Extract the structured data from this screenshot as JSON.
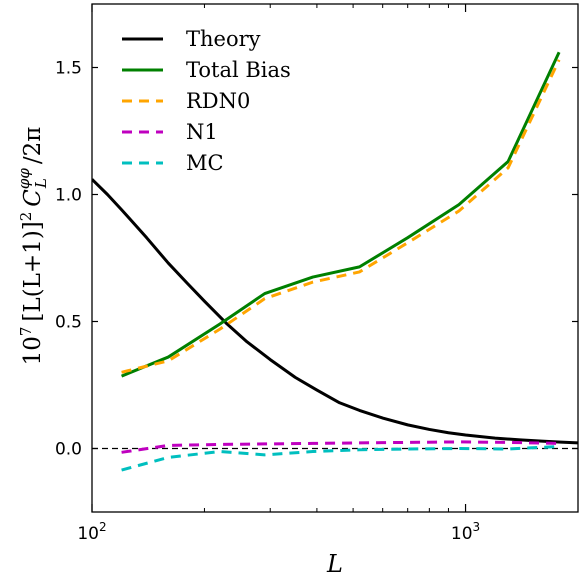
{
  "chart_data": {
    "type": "line",
    "xlabel": "L",
    "ylabel_parts": [
      "10",
      "7",
      "[L(L+1)]",
      "2",
      "C",
      "φφ",
      "L",
      "/2π"
    ],
    "xscale": "log",
    "xlim": [
      100,
      2000
    ],
    "ylim": [
      -0.25,
      1.75
    ],
    "x_ticks": [
      100,
      1000
    ],
    "x_tick_labels": [
      {
        "base": "10",
        "exp": "2"
      },
      {
        "base": "10",
        "exp": "3"
      }
    ],
    "y_ticks": [
      0.0,
      0.5,
      1.0,
      1.5
    ],
    "y_tick_labels": [
      "0.0",
      "0.5",
      "1.0",
      "1.5"
    ],
    "legend_position": "upper-left",
    "reference_line": {
      "y": 0.0,
      "style": "dashed",
      "color": "#000000"
    },
    "series": [
      {
        "name": "Theory",
        "color": "#000000",
        "dash": false,
        "x": [
          100,
          110,
          120,
          140,
          160,
          180,
          200,
          230,
          260,
          300,
          350,
          400,
          460,
          520,
          600,
          700,
          800,
          900,
          1000,
          1200,
          1400,
          1600,
          1800,
          2000
        ],
        "y": [
          1.06,
          1.0,
          0.94,
          0.83,
          0.73,
          0.65,
          0.58,
          0.49,
          0.42,
          0.35,
          0.28,
          0.23,
          0.18,
          0.15,
          0.12,
          0.093,
          0.075,
          0.062,
          0.053,
          0.041,
          0.034,
          0.029,
          0.025,
          0.022
        ]
      },
      {
        "name": "Total Bias",
        "color": "#008000",
        "dash": false,
        "x": [
          120,
          160,
          220,
          290,
          390,
          520,
          700,
          960,
          1300,
          1780
        ],
        "y": [
          0.285,
          0.36,
          0.49,
          0.61,
          0.675,
          0.715,
          0.83,
          0.96,
          1.13,
          1.56
        ]
      },
      {
        "name": "RDN0",
        "color": "#FFA500",
        "dash": true,
        "x": [
          120,
          160,
          220,
          290,
          390,
          520,
          700,
          960,
          1300,
          1780
        ],
        "y": [
          0.3,
          0.345,
          0.47,
          0.59,
          0.655,
          0.695,
          0.81,
          0.935,
          1.105,
          1.53
        ]
      },
      {
        "name": "N1",
        "color": "#BF00BF",
        "dash": true,
        "x": [
          120,
          160,
          220,
          290,
          390,
          520,
          700,
          960,
          1300,
          1780
        ],
        "y": [
          -0.015,
          0.012,
          0.016,
          0.018,
          0.02,
          0.022,
          0.024,
          0.026,
          0.024,
          0.02
        ]
      },
      {
        "name": "MC",
        "color": "#00BFBF",
        "dash": true,
        "x": [
          120,
          160,
          220,
          290,
          390,
          520,
          700,
          960,
          1300,
          1780
        ],
        "y": [
          -0.085,
          -0.035,
          -0.012,
          -0.025,
          -0.012,
          -0.005,
          -0.002,
          0.0,
          -0.002,
          0.008
        ]
      }
    ]
  }
}
